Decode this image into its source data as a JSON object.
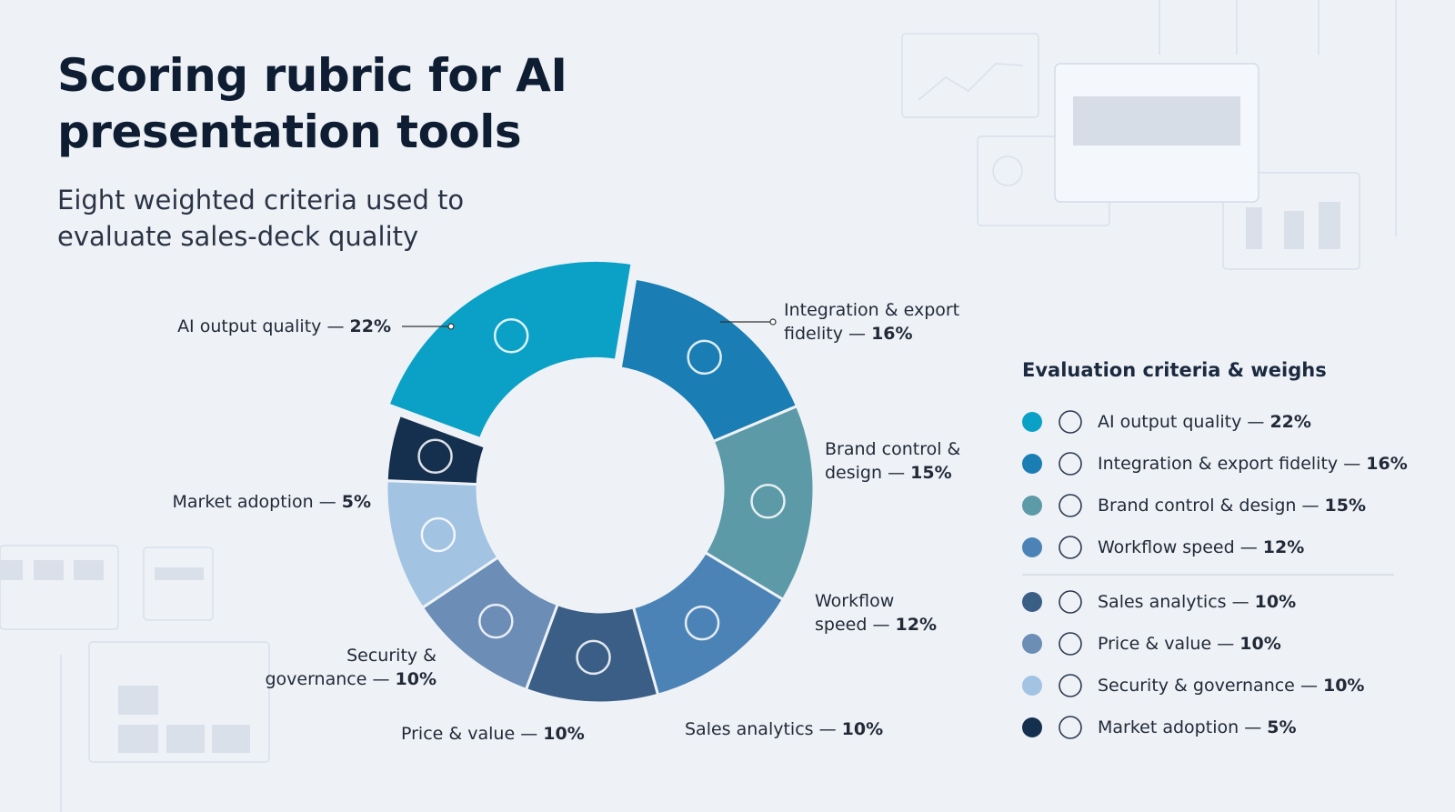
{
  "chart_data": {
    "type": "donut",
    "title": "Scoring rubric for AI presentation tools",
    "subtitle": "Eight weighted criteria used to evaluate sales-deck quality",
    "categories": [
      "AI output quality",
      "Integration & export fidelity",
      "Brand control & design",
      "Workflow speed",
      "Sales analytics",
      "Price & value",
      "Security & governance",
      "Market adoption"
    ],
    "values": [
      22,
      16,
      15,
      12,
      10,
      10,
      10,
      5
    ],
    "value_labels": [
      "22%",
      "16%",
      "15%",
      "12%",
      "10%",
      "10%",
      "10%",
      "5%"
    ],
    "separator": "—",
    "colors": [
      "#0ba1c6",
      "#1a7db3",
      "#5b9aa6",
      "#4c83b6",
      "#3b5e86",
      "#6b8db6",
      "#a2c3e2",
      "#15304f"
    ],
    "legend": {
      "title": "Evaluation criteria & weighs",
      "position": "right"
    }
  }
}
